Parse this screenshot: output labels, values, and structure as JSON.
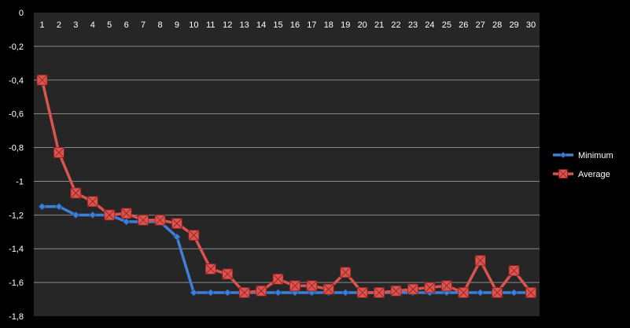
{
  "chart_data": {
    "type": "line",
    "title": "",
    "xlabel": "",
    "ylabel": "",
    "categories": [
      "1",
      "2",
      "3",
      "4",
      "5",
      "6",
      "7",
      "8",
      "9",
      "10",
      "11",
      "12",
      "13",
      "14",
      "15",
      "16",
      "17",
      "18",
      "19",
      "20",
      "21",
      "22",
      "23",
      "24",
      "25",
      "26",
      "27",
      "28",
      "29",
      "30"
    ],
    "ylim": [
      -1.8,
      0
    ],
    "yticks": [
      "0",
      "-0,2",
      "-0,4",
      "-0,6",
      "-0,8",
      "-1",
      "-1,2",
      "-1,4",
      "-1,6",
      "-1,8"
    ],
    "grid": true,
    "legend_position": "right",
    "series": [
      {
        "name": "Minimum",
        "color": "#3f7fd6",
        "marker": "diamond",
        "values": [
          -1.15,
          -1.15,
          -1.2,
          -1.2,
          -1.2,
          -1.24,
          -1.24,
          -1.24,
          -1.33,
          -1.66,
          -1.66,
          -1.66,
          -1.66,
          -1.66,
          -1.66,
          -1.66,
          -1.66,
          -1.66,
          -1.66,
          -1.66,
          -1.66,
          -1.66,
          -1.66,
          -1.66,
          -1.66,
          -1.66,
          -1.66,
          -1.66,
          -1.66,
          -1.66
        ]
      },
      {
        "name": "Average",
        "color": "#d9534f",
        "marker": "square",
        "values": [
          -0.4,
          -0.83,
          -1.07,
          -1.12,
          -1.2,
          -1.19,
          -1.23,
          -1.23,
          -1.25,
          -1.32,
          -1.52,
          -1.55,
          -1.66,
          -1.65,
          -1.58,
          -1.62,
          -1.62,
          -1.64,
          -1.54,
          -1.66,
          -1.66,
          -1.65,
          -1.64,
          -1.63,
          -1.62,
          -1.66,
          -1.47,
          -1.66,
          -1.53,
          -1.66
        ]
      }
    ]
  }
}
